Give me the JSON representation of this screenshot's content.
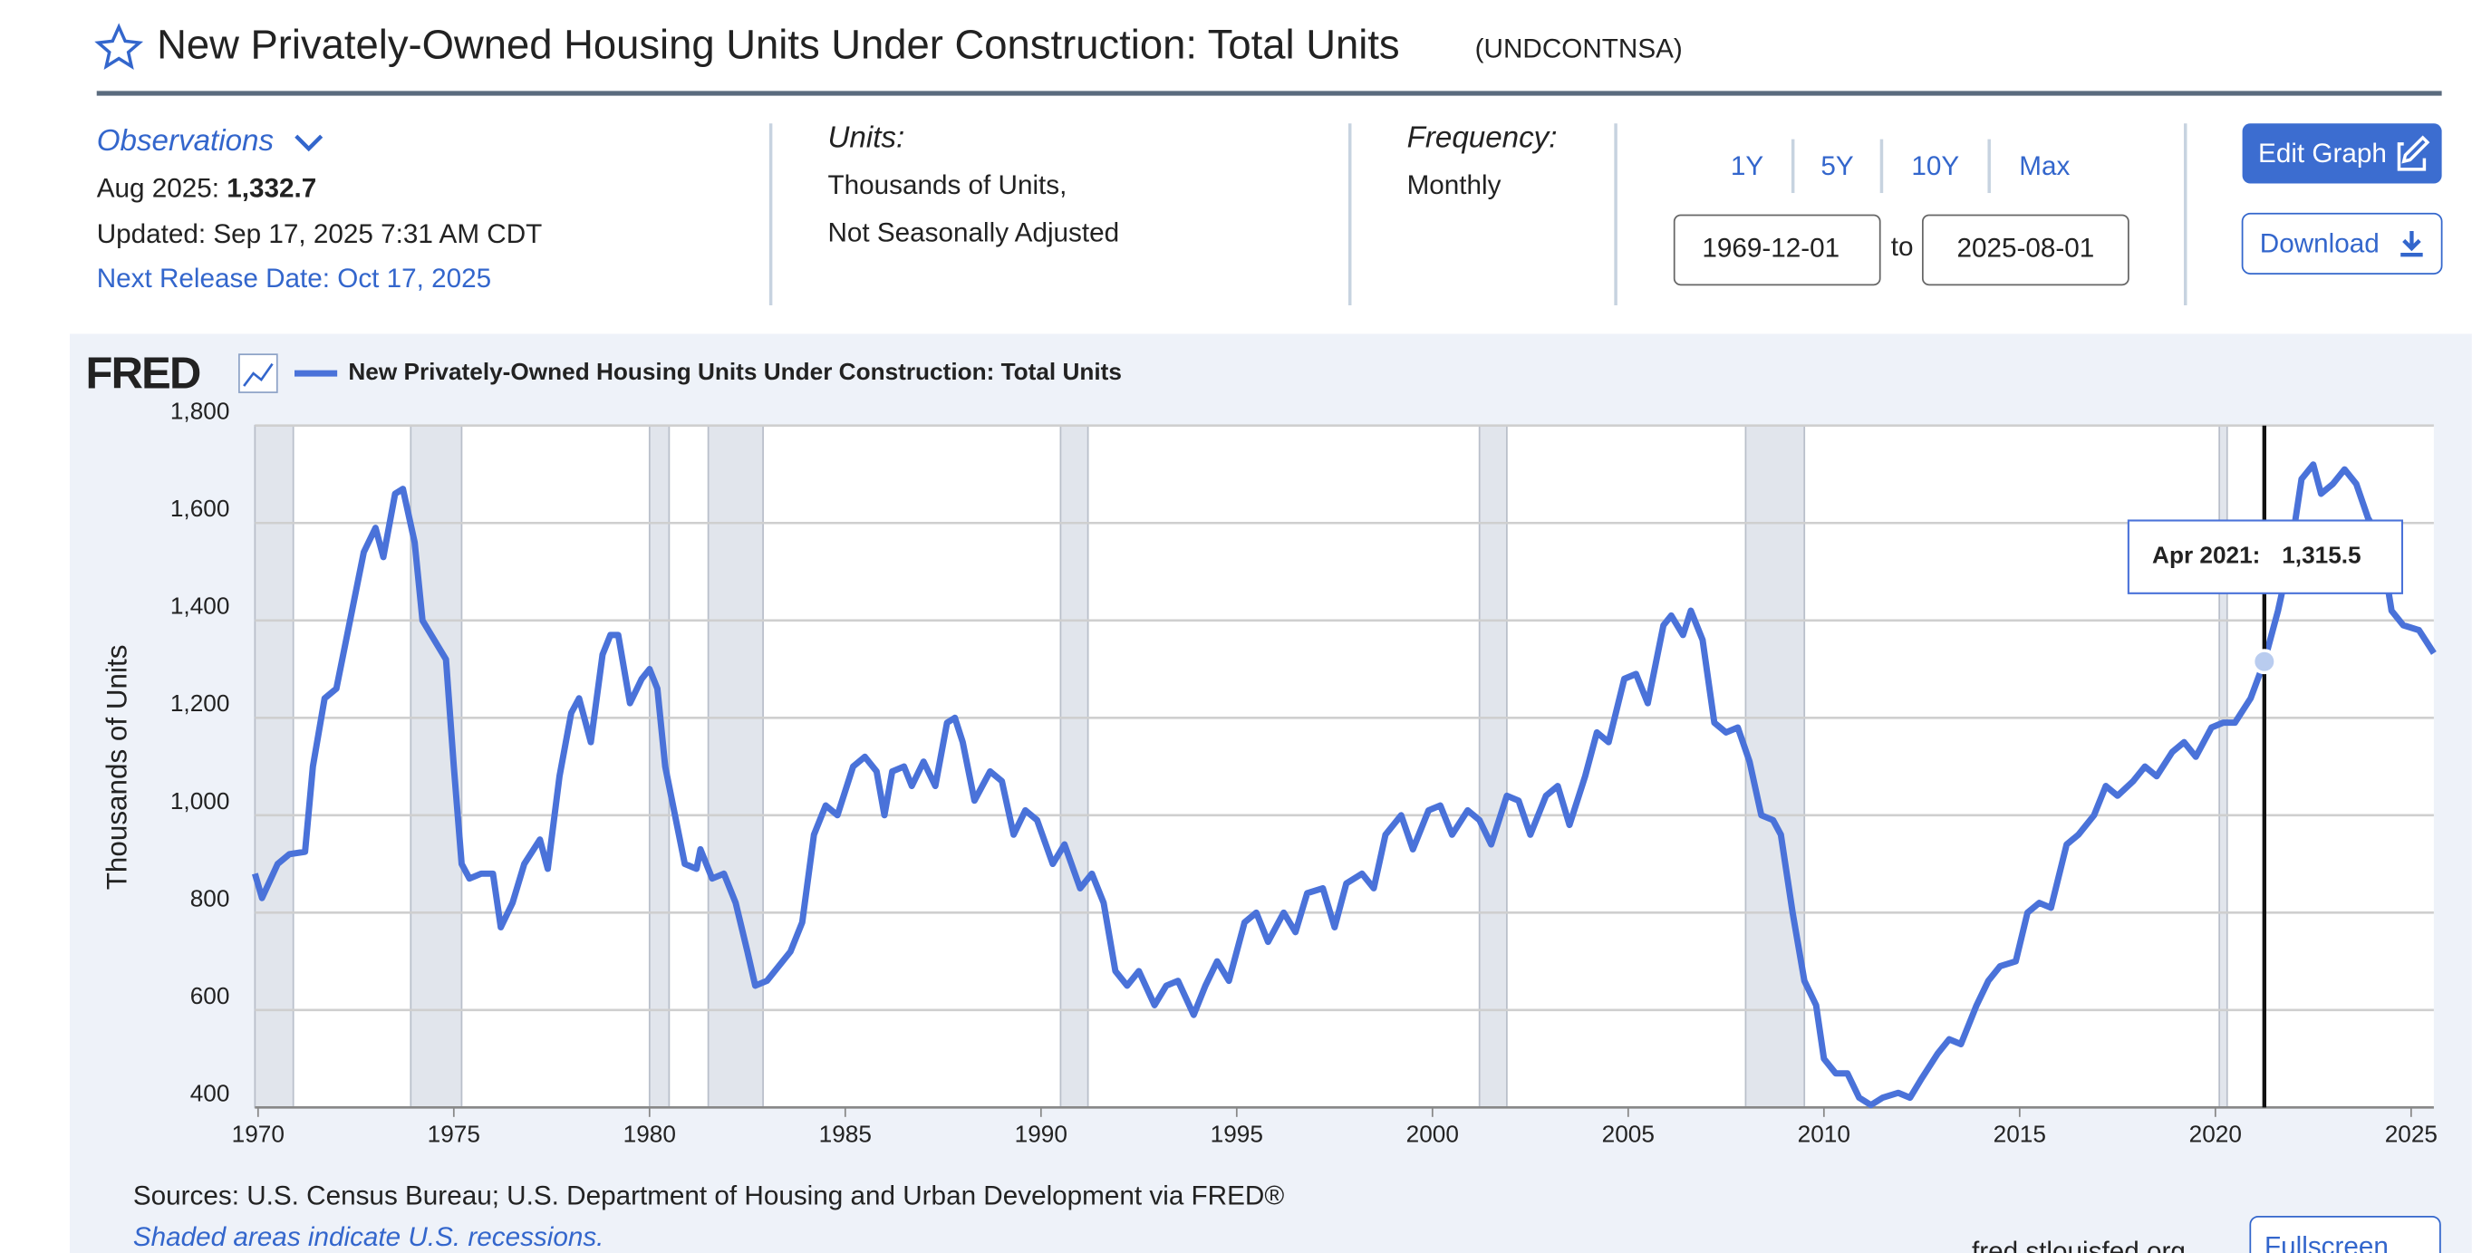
{
  "header": {
    "title": "New Privately-Owned Housing Units Under Construction: Total Units",
    "series_id": "(UNDCONTNSA)"
  },
  "observations": {
    "toggle": "Observations",
    "latest_label": "Aug 2025:",
    "latest_value": "1,332.7",
    "updated": "Updated: Sep 17, 2025 7:31 AM CDT",
    "next_release": "Next Release Date: Oct 17, 2025"
  },
  "units": {
    "label": "Units:",
    "line1": "Thousands of Units,",
    "line2": "Not Seasonally Adjusted"
  },
  "frequency": {
    "label": "Frequency:",
    "value": "Monthly"
  },
  "ranges": [
    "1Y",
    "5Y",
    "10Y",
    "Max"
  ],
  "dates": {
    "start": "1969-12-01",
    "to": "to",
    "end": "2025-08-01"
  },
  "buttons": {
    "edit": "Edit Graph",
    "download": "Download",
    "fullscreen": "Fullscreen"
  },
  "logo": "FRED",
  "footer": {
    "sources": "Sources: U.S. Census Bureau; U.S. Department of Housing and Urban Development via FRED®",
    "shading": "Shaded areas indicate U.S. recessions.",
    "site": "fred.stlouisfed.org"
  },
  "chart_data": {
    "type": "line",
    "ylabel": "Thousands of Units",
    "xlim": [
      1969.92,
      2025.58
    ],
    "xticks": [
      1970,
      1975,
      1980,
      1985,
      1990,
      1995,
      2000,
      2005,
      2010,
      2015,
      2020,
      2025
    ],
    "ylim": [
      400,
      1800
    ],
    "yticks": [
      {
        "value": 400,
        "label": "400"
      },
      {
        "value": 600,
        "label": "600"
      },
      {
        "value": 800,
        "label": "800"
      },
      {
        "value": 1000,
        "label": "1,000"
      },
      {
        "value": 1200,
        "label": "1,200"
      },
      {
        "value": 1400,
        "label": "1,400"
      },
      {
        "value": 1600,
        "label": "1,600"
      },
      {
        "value": 1800,
        "label": "1,800"
      }
    ],
    "grid": true,
    "recessions": [
      [
        1969.92,
        1970.9
      ],
      [
        1973.9,
        1975.2
      ],
      [
        1980.0,
        1980.5
      ],
      [
        1981.5,
        1982.9
      ],
      [
        1990.5,
        1991.2
      ],
      [
        2001.2,
        2001.9
      ],
      [
        2008.0,
        2009.5
      ],
      [
        2020.1,
        2020.3
      ]
    ],
    "x": [
      1969.92,
      1970.1,
      1970.5,
      1970.8,
      1971.2,
      1971.4,
      1971.7,
      1972.0,
      1972.4,
      1972.7,
      1973.0,
      1973.2,
      1973.5,
      1973.7,
      1974.0,
      1974.2,
      1974.5,
      1974.8,
      1975.0,
      1975.2,
      1975.4,
      1975.7,
      1976.0,
      1976.2,
      1976.5,
      1976.8,
      1977.2,
      1977.4,
      1977.7,
      1978.0,
      1978.2,
      1978.5,
      1978.8,
      1979.0,
      1979.2,
      1979.5,
      1979.8,
      1980.0,
      1980.2,
      1980.4,
      1980.7,
      1980.9,
      1981.2,
      1981.3,
      1981.6,
      1981.9,
      1982.2,
      1982.5,
      1982.7,
      1983.0,
      1983.3,
      1983.6,
      1983.9,
      1984.2,
      1984.5,
      1984.8,
      1985.2,
      1985.5,
      1985.8,
      1986.0,
      1986.2,
      1986.5,
      1986.7,
      1987.0,
      1987.3,
      1987.6,
      1987.8,
      1988.0,
      1988.3,
      1988.7,
      1989.0,
      1989.3,
      1989.6,
      1989.9,
      1990.3,
      1990.6,
      1991.0,
      1991.3,
      1991.6,
      1991.9,
      1992.2,
      1992.5,
      1992.9,
      1993.2,
      1993.5,
      1993.9,
      1994.2,
      1994.5,
      1994.8,
      1995.2,
      1995.5,
      1995.8,
      1996.2,
      1996.5,
      1996.8,
      1997.2,
      1997.5,
      1997.8,
      1998.2,
      1998.5,
      1998.8,
      1999.2,
      1999.5,
      1999.9,
      2000.2,
      2000.5,
      2000.9,
      2001.2,
      2001.5,
      2001.9,
      2002.2,
      2002.5,
      2002.9,
      2003.2,
      2003.5,
      2003.9,
      2004.2,
      2004.5,
      2004.9,
      2005.2,
      2005.5,
      2005.9,
      2006.1,
      2006.4,
      2006.6,
      2006.9,
      2007.2,
      2007.5,
      2007.8,
      2008.1,
      2008.4,
      2008.7,
      2008.9,
      2009.2,
      2009.5,
      2009.8,
      2010.0,
      2010.3,
      2010.6,
      2010.9,
      2011.2,
      2011.5,
      2011.9,
      2012.2,
      2012.5,
      2012.9,
      2013.2,
      2013.5,
      2013.9,
      2014.2,
      2014.5,
      2014.9,
      2015.2,
      2015.5,
      2015.8,
      2016.2,
      2016.5,
      2016.9,
      2017.2,
      2017.5,
      2017.9,
      2018.2,
      2018.5,
      2018.9,
      2019.2,
      2019.5,
      2019.9,
      2020.2,
      2020.5,
      2020.9,
      2021.25,
      2021.6,
      2021.9,
      2022.2,
      2022.5,
      2022.7,
      2023.0,
      2023.3,
      2023.6,
      2023.9,
      2024.2,
      2024.5,
      2024.8,
      2025.2,
      2025.58
    ],
    "series": [
      {
        "name": "New Privately-Owned Housing Units Under Construction: Total Units",
        "color": "#4a72d9",
        "values": [
          880,
          830,
          900,
          920,
          925,
          1100,
          1240,
          1260,
          1420,
          1540,
          1590,
          1530,
          1660,
          1670,
          1560,
          1400,
          1360,
          1320,
          1100,
          900,
          870,
          880,
          880,
          770,
          820,
          900,
          950,
          890,
          1080,
          1210,
          1240,
          1150,
          1330,
          1370,
          1370,
          1230,
          1280,
          1300,
          1260,
          1100,
          980,
          900,
          890,
          930,
          870,
          880,
          820,
          720,
          650,
          660,
          690,
          720,
          780,
          960,
          1020,
          1000,
          1100,
          1120,
          1090,
          1000,
          1090,
          1100,
          1060,
          1110,
          1060,
          1190,
          1200,
          1150,
          1030,
          1090,
          1070,
          960,
          1010,
          990,
          900,
          940,
          850,
          880,
          820,
          680,
          650,
          680,
          610,
          650,
          660,
          590,
          650,
          700,
          660,
          780,
          800,
          740,
          800,
          760,
          840,
          850,
          770,
          860,
          880,
          850,
          960,
          1000,
          930,
          1010,
          1020,
          960,
          1010,
          990,
          940,
          1040,
          1030,
          960,
          1040,
          1060,
          980,
          1080,
          1170,
          1150,
          1280,
          1290,
          1230,
          1390,
          1410,
          1370,
          1420,
          1360,
          1190,
          1170,
          1180,
          1110,
          1000,
          990,
          960,
          800,
          660,
          610,
          500,
          470,
          470,
          420,
          405,
          420,
          430,
          420,
          460,
          510,
          540,
          530,
          610,
          660,
          690,
          700,
          800,
          820,
          810,
          940,
          960,
          1000,
          1060,
          1040,
          1070,
          1100,
          1080,
          1130,
          1150,
          1120,
          1180,
          1190,
          1190,
          1240,
          1315.5,
          1420,
          1530,
          1690,
          1720,
          1660,
          1680,
          1710,
          1680,
          1610,
          1570,
          1420,
          1390,
          1380,
          1332.7
        ]
      }
    ],
    "tooltip": {
      "x": 2021.25,
      "date_label": "Apr 2021:",
      "value": 1315.5,
      "value_label": "1,315.5"
    }
  }
}
